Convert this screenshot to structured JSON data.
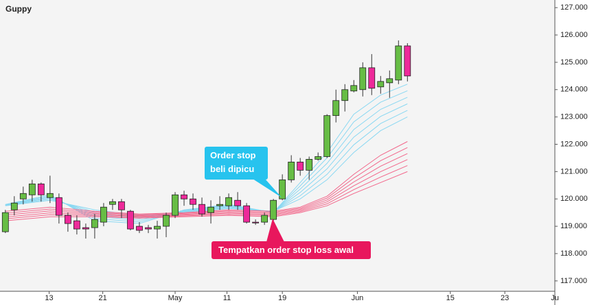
{
  "chart_data": {
    "type": "candlestick",
    "title": "Guppy",
    "x": [
      0,
      1,
      2,
      3,
      4,
      5,
      6,
      7,
      8,
      9,
      10,
      11,
      12,
      13,
      14,
      15,
      16,
      17,
      18,
      19,
      20,
      21,
      22,
      23,
      24,
      25,
      26,
      27,
      28,
      29,
      30,
      31,
      32,
      33,
      34,
      35,
      36,
      37,
      38,
      39,
      40,
      41,
      42,
      43,
      44,
      45
    ],
    "open": [
      118.8,
      119.6,
      120.0,
      120.15,
      120.55,
      120.05,
      120.05,
      119.4,
      119.2,
      118.95,
      118.95,
      119.15,
      119.8,
      119.9,
      119.55,
      119.0,
      118.95,
      118.9,
      119.0,
      119.4,
      120.15,
      120.0,
      119.8,
      119.5,
      119.75,
      119.75,
      119.95,
      119.75,
      119.15,
      119.15,
      119.25,
      120.0,
      120.7,
      121.35,
      121.05,
      121.45,
      121.55,
      123.05,
      123.6,
      123.95,
      124.0,
      124.8,
      124.1,
      124.25,
      124.35,
      125.6
    ],
    "high": [
      119.6,
      120.1,
      120.45,
      120.7,
      120.6,
      120.85,
      120.2,
      119.5,
      119.4,
      119.1,
      119.45,
      119.85,
      120.0,
      120.0,
      119.6,
      119.15,
      119.05,
      119.2,
      119.5,
      120.25,
      120.3,
      120.2,
      120.05,
      119.95,
      120.1,
      120.2,
      120.25,
      119.85,
      119.25,
      119.5,
      120.0,
      120.9,
      121.6,
      121.5,
      121.55,
      121.7,
      123.1,
      124.0,
      124.2,
      124.35,
      125.0,
      125.3,
      124.5,
      124.7,
      125.8,
      125.7
    ],
    "low": [
      118.75,
      119.4,
      119.8,
      119.9,
      119.9,
      119.85,
      119.1,
      118.8,
      118.7,
      118.55,
      118.55,
      119.0,
      119.6,
      119.3,
      118.85,
      118.75,
      118.75,
      118.55,
      118.6,
      119.3,
      119.75,
      119.6,
      119.35,
      119.1,
      119.6,
      119.6,
      119.6,
      119.1,
      119.05,
      119.05,
      119.2,
      119.95,
      120.6,
      120.85,
      120.7,
      121.4,
      121.5,
      122.8,
      123.2,
      123.9,
      123.75,
      123.8,
      123.85,
      123.7,
      124.2,
      124.3
    ],
    "close": [
      119.5,
      119.85,
      120.2,
      120.55,
      120.15,
      120.2,
      119.4,
      119.1,
      118.9,
      118.9,
      119.25,
      119.7,
      119.9,
      119.6,
      118.9,
      118.85,
      118.9,
      119.0,
      119.4,
      120.15,
      120.0,
      119.8,
      119.45,
      119.7,
      119.8,
      120.05,
      119.75,
      119.15,
      119.12,
      119.4,
      119.95,
      120.7,
      121.35,
      121.05,
      121.45,
      121.55,
      123.05,
      123.6,
      124.0,
      124.15,
      124.8,
      124.05,
      124.3,
      124.4,
      125.6,
      124.5
    ],
    "up_color": "#67bd45",
    "down_color": "#ee2a9a",
    "lines": [
      {
        "color": "#8ad8f2",
        "x": [
          0,
          5,
          10,
          15,
          20,
          25,
          30,
          33,
          36,
          39,
          42,
          45
        ],
        "values": [
          119.8,
          120.15,
          119.2,
          119.1,
          119.6,
          119.8,
          119.5,
          120.6,
          121.7,
          123.1,
          123.8,
          124.2
        ]
      },
      {
        "color": "#8ad8f2",
        "x": [
          0,
          5,
          10,
          15,
          20,
          25,
          30,
          33,
          36,
          39,
          42,
          45
        ],
        "values": [
          119.79,
          120.11,
          119.28,
          119.16,
          119.58,
          119.77,
          119.51,
          120.48,
          121.5,
          122.82,
          123.54,
          123.96
        ]
      },
      {
        "color": "#8ad8f2",
        "x": [
          0,
          5,
          10,
          15,
          20,
          25,
          30,
          33,
          36,
          39,
          42,
          45
        ],
        "values": [
          119.78,
          120.07,
          119.36,
          119.22,
          119.56,
          119.74,
          119.52,
          120.36,
          121.3,
          122.54,
          123.28,
          123.72
        ]
      },
      {
        "color": "#8ad8f2",
        "x": [
          0,
          5,
          10,
          15,
          20,
          25,
          30,
          33,
          36,
          39,
          42,
          45
        ],
        "values": [
          119.77,
          120.03,
          119.44,
          119.28,
          119.54,
          119.71,
          119.53,
          120.24,
          121.1,
          122.26,
          123.02,
          123.48
        ]
      },
      {
        "color": "#8ad8f2",
        "x": [
          0,
          5,
          10,
          15,
          20,
          25,
          30,
          33,
          36,
          39,
          42,
          45
        ],
        "values": [
          119.76,
          119.99,
          119.52,
          119.34,
          119.52,
          119.68,
          119.54,
          120.12,
          120.9,
          121.98,
          122.76,
          123.24
        ]
      },
      {
        "color": "#8ad8f2",
        "x": [
          0,
          5,
          10,
          15,
          20,
          25,
          30,
          33,
          36,
          39,
          42,
          45
        ],
        "values": [
          119.75,
          119.95,
          119.6,
          119.4,
          119.5,
          119.65,
          119.55,
          120.0,
          120.7,
          121.7,
          122.5,
          123.0
        ]
      },
      {
        "color": "#f2668a",
        "x": [
          0,
          5,
          10,
          15,
          20,
          25,
          30,
          33,
          36,
          39,
          42,
          45
        ],
        "values": [
          119.55,
          119.7,
          119.55,
          119.45,
          119.5,
          119.6,
          119.55,
          119.7,
          120.1,
          120.9,
          121.6,
          122.1
        ]
      },
      {
        "color": "#f2668a",
        "x": [
          0,
          5,
          10,
          15,
          20,
          25,
          30,
          33,
          36,
          39,
          42,
          45
        ],
        "values": [
          119.48,
          119.63,
          119.51,
          119.42,
          119.47,
          119.56,
          119.51,
          119.66,
          120.03,
          120.76,
          121.4,
          121.88
        ]
      },
      {
        "color": "#f2668a",
        "x": [
          0,
          5,
          10,
          15,
          20,
          25,
          30,
          33,
          36,
          39,
          42,
          45
        ],
        "values": [
          119.41,
          119.56,
          119.47,
          119.39,
          119.44,
          119.52,
          119.47,
          119.62,
          119.96,
          120.62,
          121.2,
          121.66
        ]
      },
      {
        "color": "#f2668a",
        "x": [
          0,
          5,
          10,
          15,
          20,
          25,
          30,
          33,
          36,
          39,
          42,
          45
        ],
        "values": [
          119.34,
          119.49,
          119.43,
          119.36,
          119.41,
          119.48,
          119.43,
          119.58,
          119.89,
          120.48,
          121.0,
          121.44
        ]
      },
      {
        "color": "#f2668a",
        "x": [
          0,
          5,
          10,
          15,
          20,
          25,
          30,
          33,
          36,
          39,
          42,
          45
        ],
        "values": [
          119.27,
          119.42,
          119.39,
          119.33,
          119.38,
          119.44,
          119.39,
          119.54,
          119.82,
          120.34,
          120.8,
          121.22
        ]
      },
      {
        "color": "#f2668a",
        "x": [
          0,
          5,
          10,
          15,
          20,
          25,
          30,
          33,
          36,
          39,
          42,
          45
        ],
        "values": [
          119.2,
          119.35,
          119.35,
          119.3,
          119.35,
          119.4,
          119.35,
          119.5,
          119.75,
          120.2,
          120.6,
          121.0
        ]
      }
    ],
    "xlim": [
      -0.6,
      61.5
    ],
    "xticks": [
      {
        "value": 4.9,
        "label": "13"
      },
      {
        "value": 10.9,
        "label": "21"
      },
      {
        "value": 19,
        "label": "May"
      },
      {
        "value": 24.8,
        "label": "11"
      },
      {
        "value": 31,
        "label": "19"
      },
      {
        "value": 39.4,
        "label": "Jun"
      },
      {
        "value": 49.8,
        "label": "15"
      },
      {
        "value": 55.9,
        "label": "23"
      },
      {
        "value": 61.5,
        "label": "Ju"
      }
    ],
    "ylim": [
      116.62,
      127.28
    ],
    "yticks": [
      {
        "value": 117,
        "label": "117.000"
      },
      {
        "value": 118,
        "label": "118.000"
      },
      {
        "value": 119,
        "label": "119.000"
      },
      {
        "value": 120,
        "label": "120.000"
      },
      {
        "value": 121,
        "label": "121.000"
      },
      {
        "value": 122,
        "label": "122.000"
      },
      {
        "value": 123,
        "label": "123.000"
      },
      {
        "value": 124,
        "label": "124.000"
      },
      {
        "value": 125,
        "label": "125.000"
      },
      {
        "value": 126,
        "label": "126.000"
      },
      {
        "value": 127,
        "label": "127.000"
      }
    ],
    "annotations": [
      {
        "text": "Order stop beli dipicu",
        "color": "#27c3ee"
      },
      {
        "text": "Tempatkan order stop loss awal",
        "color": "#e8175d"
      }
    ]
  }
}
